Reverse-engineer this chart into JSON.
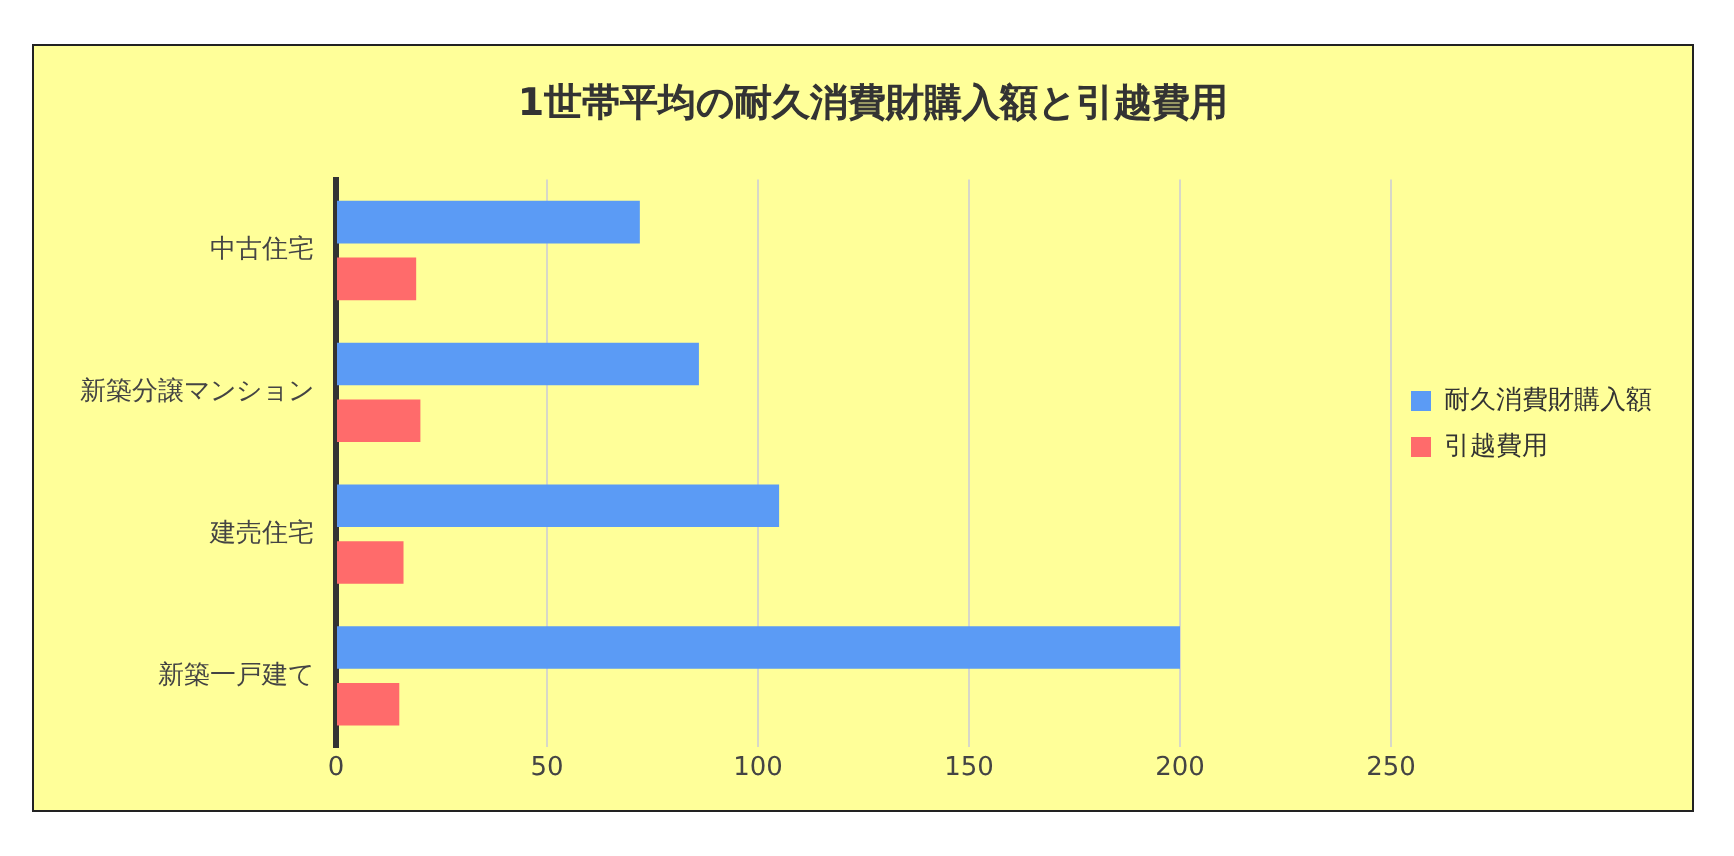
{
  "chart_data": {
    "type": "bar",
    "orientation": "horizontal",
    "title": "1世帯平均の耐久消費財購入額と引越費用",
    "categories": [
      "中古住宅",
      "新築分譲マンション",
      "建売住宅",
      "新築一戸建て"
    ],
    "series": [
      {
        "name": "耐久消費財購入額",
        "color": "#5b9bf5",
        "values": [
          72,
          86,
          105,
          200
        ]
      },
      {
        "name": "引越費用",
        "color": "#ff6b6b",
        "values": [
          19,
          20,
          16,
          15
        ]
      }
    ],
    "xlim": [
      0,
      250
    ],
    "xticks": [
      0,
      50,
      100,
      150,
      200,
      250
    ],
    "grid": "x",
    "legend": "right"
  }
}
